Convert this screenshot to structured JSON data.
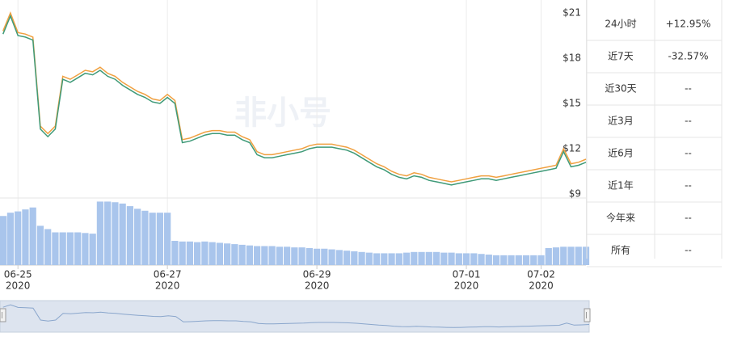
{
  "chart_data": {
    "type": "line",
    "watermark": "非小号",
    "x": [
      -0.2,
      -0.1,
      0,
      0.1,
      0.2,
      0.3,
      0.4,
      0.5,
      0.6,
      0.7,
      0.8,
      0.9,
      1,
      1.1,
      1.2,
      1.3,
      1.4,
      1.5,
      1.6,
      1.7,
      1.8,
      1.9,
      2,
      2.1,
      2.2,
      2.3,
      2.4,
      2.5,
      2.6,
      2.7,
      2.8,
      2.9,
      3,
      3.1,
      3.2,
      3.3,
      3.4,
      3.5,
      3.6,
      3.7,
      3.8,
      3.9,
      4,
      4.1,
      4.2,
      4.3,
      4.4,
      4.5,
      4.6,
      4.7,
      4.8,
      4.9,
      5,
      5.1,
      5.2,
      5.3,
      5.4,
      5.5,
      5.6,
      5.7,
      5.8,
      5.9,
      6,
      6.1,
      6.2,
      6.3,
      6.4,
      6.5,
      6.6,
      6.7,
      6.8,
      6.9,
      7,
      7.1,
      7.2,
      7.3,
      7.4,
      7.5,
      7.6
    ],
    "series": [
      {
        "color": "#f0a040",
        "values": [
          19.8,
          21.0,
          19.7,
          19.6,
          19.4,
          13.5,
          13.0,
          13.5,
          16.8,
          16.6,
          16.9,
          17.2,
          17.1,
          17.4,
          17.0,
          16.8,
          16.4,
          16.1,
          15.8,
          15.6,
          15.3,
          15.2,
          15.6,
          15.2,
          12.6,
          12.7,
          12.9,
          13.1,
          13.2,
          13.2,
          13.1,
          13.1,
          12.8,
          12.6,
          11.8,
          11.6,
          11.6,
          11.7,
          11.8,
          11.9,
          12.0,
          12.2,
          12.3,
          12.3,
          12.3,
          12.2,
          12.1,
          11.9,
          11.6,
          11.3,
          11.0,
          10.8,
          10.5,
          10.3,
          10.2,
          10.4,
          10.3,
          10.1,
          10.0,
          9.9,
          9.8,
          9.9,
          10.0,
          10.1,
          10.2,
          10.2,
          10.1,
          10.2,
          10.3,
          10.4,
          10.5,
          10.6,
          10.7,
          10.8,
          10.9,
          12.0,
          11.0,
          11.1,
          11.3
        ]
      },
      {
        "color": "#3f9a78",
        "values": [
          19.6,
          20.8,
          19.5,
          19.4,
          19.2,
          13.3,
          12.8,
          13.3,
          16.6,
          16.4,
          16.7,
          17.0,
          16.9,
          17.2,
          16.8,
          16.6,
          16.2,
          15.9,
          15.6,
          15.4,
          15.1,
          15.0,
          15.4,
          15.0,
          12.4,
          12.5,
          12.7,
          12.9,
          13.0,
          13.0,
          12.9,
          12.9,
          12.6,
          12.4,
          11.6,
          11.4,
          11.4,
          11.5,
          11.6,
          11.7,
          11.8,
          12.0,
          12.1,
          12.1,
          12.1,
          12.0,
          11.9,
          11.7,
          11.4,
          11.1,
          10.8,
          10.6,
          10.3,
          10.1,
          10.0,
          10.2,
          10.1,
          9.9,
          9.8,
          9.7,
          9.6,
          9.7,
          9.8,
          9.9,
          10.0,
          10.0,
          9.9,
          10.0,
          10.1,
          10.2,
          10.3,
          10.4,
          10.5,
          10.6,
          10.7,
          11.8,
          10.8,
          10.9,
          11.1
        ]
      }
    ],
    "volume": {
      "color": "#a9c5ec",
      "ylim": [
        0,
        100
      ],
      "values": [
        75,
        80,
        82,
        85,
        88,
        60,
        55,
        50,
        50,
        50,
        50,
        49,
        48,
        97,
        97,
        96,
        94,
        90,
        86,
        83,
        80,
        80,
        80,
        37,
        36,
        36,
        35,
        36,
        35,
        34,
        33,
        32,
        31,
        30,
        29,
        29,
        29,
        28,
        28,
        27,
        27,
        26,
        25,
        25,
        24,
        23,
        22,
        21,
        20,
        19,
        18,
        18,
        18,
        18,
        19,
        20,
        20,
        20,
        20,
        19,
        19,
        18,
        18,
        18,
        17,
        16,
        15,
        15,
        15,
        15,
        15,
        15,
        15,
        26,
        27,
        28,
        28,
        28,
        28
      ]
    },
    "xlim": [
      -0.24,
      7.6
    ],
    "xticks": [
      {
        "value": 0,
        "label": "06-25",
        "sublabel": "2020"
      },
      {
        "value": 2,
        "label": "06-27",
        "sublabel": "2020"
      },
      {
        "value": 4,
        "label": "06-29",
        "sublabel": "2020"
      },
      {
        "value": 6,
        "label": "07-01",
        "sublabel": "2020"
      },
      {
        "value": 7,
        "label": "07-02",
        "sublabel": "2020"
      }
    ],
    "ylim": [
      8.73,
      21.86
    ],
    "yticks": [
      {
        "value": 21,
        "label": "$21"
      },
      {
        "value": 18,
        "label": "$18"
      },
      {
        "value": 15,
        "label": "$15"
      },
      {
        "value": 12,
        "label": "$12"
      },
      {
        "value": 9,
        "label": "$9"
      }
    ],
    "x_grid": true
  },
  "stats": {
    "rows": [
      {
        "label": "24小时",
        "value": "+12.95%",
        "color": "#1a9a50"
      },
      {
        "label": "近7天",
        "value": "-32.57%",
        "color": "#d4343e"
      },
      {
        "label": "近30天",
        "value": "--"
      },
      {
        "label": "近3月",
        "value": "--"
      },
      {
        "label": "近6月",
        "value": "--"
      },
      {
        "label": "近1年",
        "value": "--"
      },
      {
        "label": "今年来",
        "value": "--"
      },
      {
        "label": "所有",
        "value": "--",
        "color": "#3a6fb5"
      }
    ]
  }
}
